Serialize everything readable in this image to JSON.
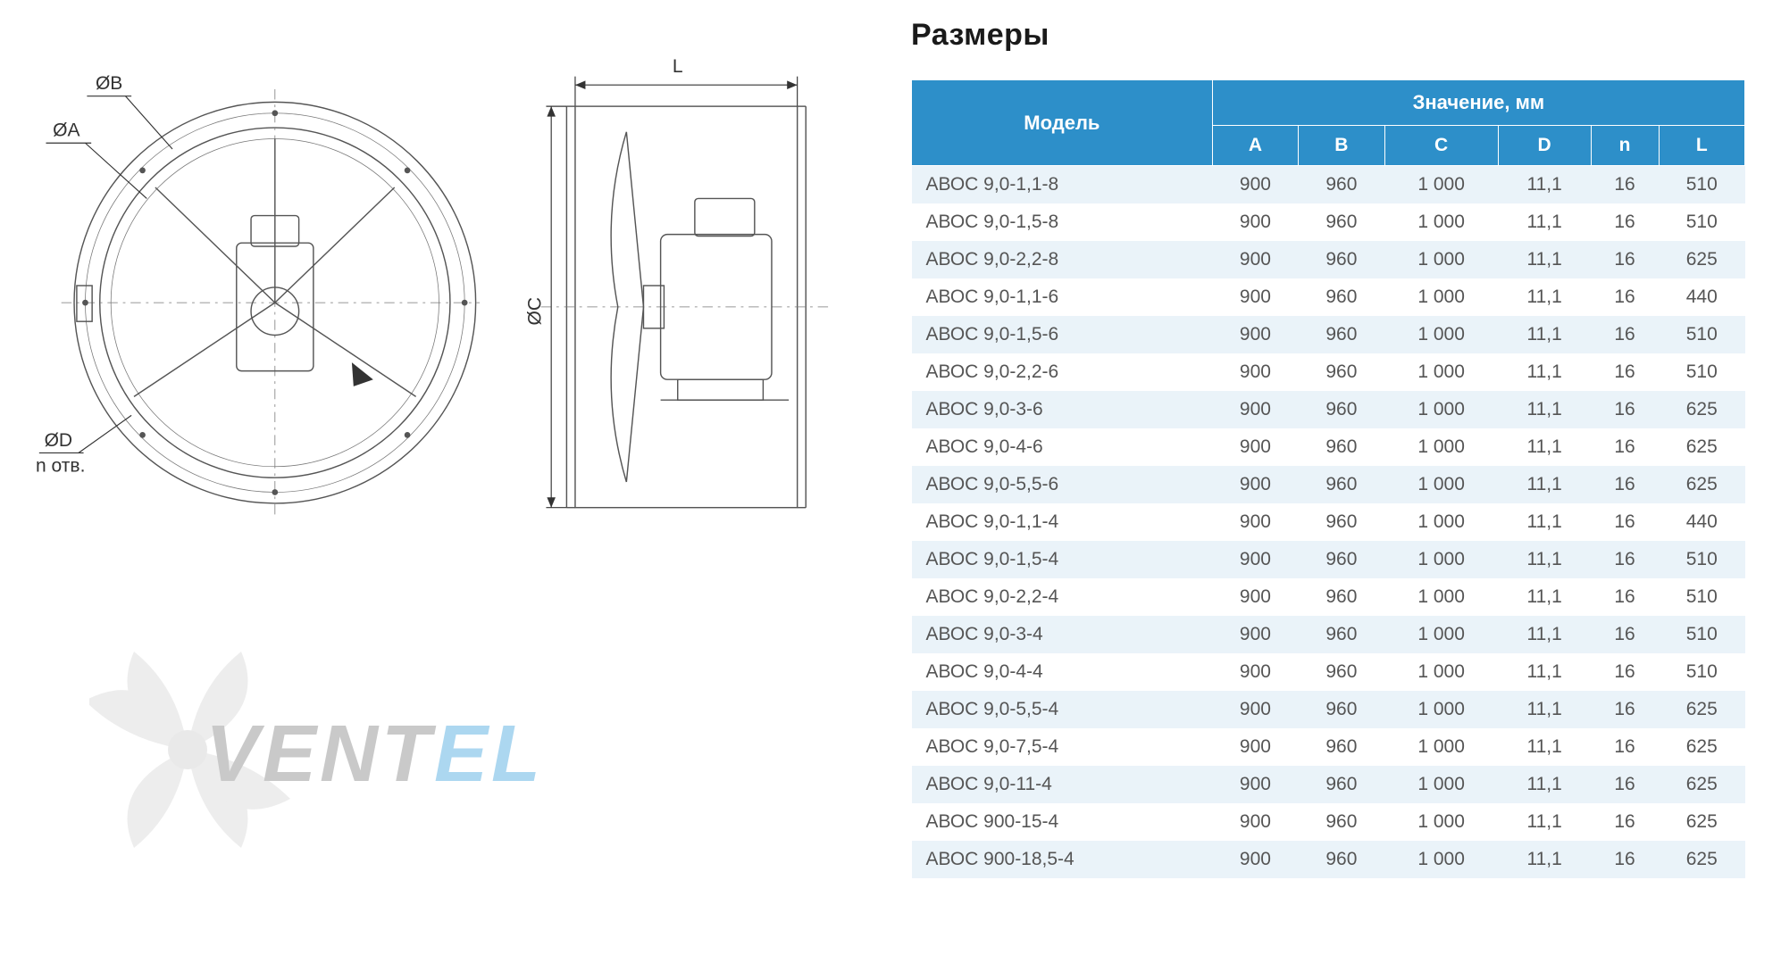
{
  "section_title": "Размеры",
  "diagram": {
    "labels": {
      "ob": "ØB",
      "oa": "ØA",
      "oc": "ØC",
      "od": "ØD",
      "n_otv": "n отв.",
      "l": "L"
    },
    "line_color": "#555555",
    "dim_line_color": "#333333",
    "fill_gray": "#c8c8c8"
  },
  "watermark": {
    "text_a": "VENT",
    "text_b": "EL",
    "color_a": "#8a8a8a",
    "color_b": "#4aa8e0"
  },
  "table": {
    "header_bg": "#2d8fc9",
    "header_fg": "#ffffff",
    "row_odd_bg": "#eaf3f9",
    "row_even_bg": "#ffffff",
    "cell_fg": "#555555",
    "model_header": "Модель",
    "value_header": "Значение, мм",
    "columns": [
      "A",
      "B",
      "C",
      "D",
      "n",
      "L"
    ],
    "rows": [
      {
        "model": "АВОС 9,0-1,1-8",
        "v": [
          "900",
          "960",
          "1 000",
          "11,1",
          "16",
          "510"
        ]
      },
      {
        "model": "АВОС 9,0-1,5-8",
        "v": [
          "900",
          "960",
          "1 000",
          "11,1",
          "16",
          "510"
        ]
      },
      {
        "model": "АВОС 9,0-2,2-8",
        "v": [
          "900",
          "960",
          "1 000",
          "11,1",
          "16",
          "625"
        ]
      },
      {
        "model": "АВОС 9,0-1,1-6",
        "v": [
          "900",
          "960",
          "1 000",
          "11,1",
          "16",
          "440"
        ]
      },
      {
        "model": "АВОС 9,0-1,5-6",
        "v": [
          "900",
          "960",
          "1 000",
          "11,1",
          "16",
          "510"
        ]
      },
      {
        "model": "АВОС 9,0-2,2-6",
        "v": [
          "900",
          "960",
          "1 000",
          "11,1",
          "16",
          "510"
        ]
      },
      {
        "model": "АВОС 9,0-3-6",
        "v": [
          "900",
          "960",
          "1 000",
          "11,1",
          "16",
          "625"
        ]
      },
      {
        "model": "АВОС 9,0-4-6",
        "v": [
          "900",
          "960",
          "1 000",
          "11,1",
          "16",
          "625"
        ]
      },
      {
        "model": "АВОС 9,0-5,5-6",
        "v": [
          "900",
          "960",
          "1 000",
          "11,1",
          "16",
          "625"
        ]
      },
      {
        "model": "АВОС 9,0-1,1-4",
        "v": [
          "900",
          "960",
          "1 000",
          "11,1",
          "16",
          "440"
        ]
      },
      {
        "model": "АВОС 9,0-1,5-4",
        "v": [
          "900",
          "960",
          "1 000",
          "11,1",
          "16",
          "510"
        ]
      },
      {
        "model": "АВОС 9,0-2,2-4",
        "v": [
          "900",
          "960",
          "1 000",
          "11,1",
          "16",
          "510"
        ]
      },
      {
        "model": "АВОС 9,0-3-4",
        "v": [
          "900",
          "960",
          "1 000",
          "11,1",
          "16",
          "510"
        ]
      },
      {
        "model": "АВОС 9,0-4-4",
        "v": [
          "900",
          "960",
          "1 000",
          "11,1",
          "16",
          "510"
        ]
      },
      {
        "model": "АВОС 9,0-5,5-4",
        "v": [
          "900",
          "960",
          "1 000",
          "11,1",
          "16",
          "625"
        ]
      },
      {
        "model": "АВОС 9,0-7,5-4",
        "v": [
          "900",
          "960",
          "1 000",
          "11,1",
          "16",
          "625"
        ]
      },
      {
        "model": "АВОС 9,0-11-4",
        "v": [
          "900",
          "960",
          "1 000",
          "11,1",
          "16",
          "625"
        ]
      },
      {
        "model": "АВОС 900-15-4",
        "v": [
          "900",
          "960",
          "1 000",
          "11,1",
          "16",
          "625"
        ]
      },
      {
        "model": "АВОС 900-18,5-4",
        "v": [
          "900",
          "960",
          "1 000",
          "11,1",
          "16",
          "625"
        ]
      }
    ]
  }
}
